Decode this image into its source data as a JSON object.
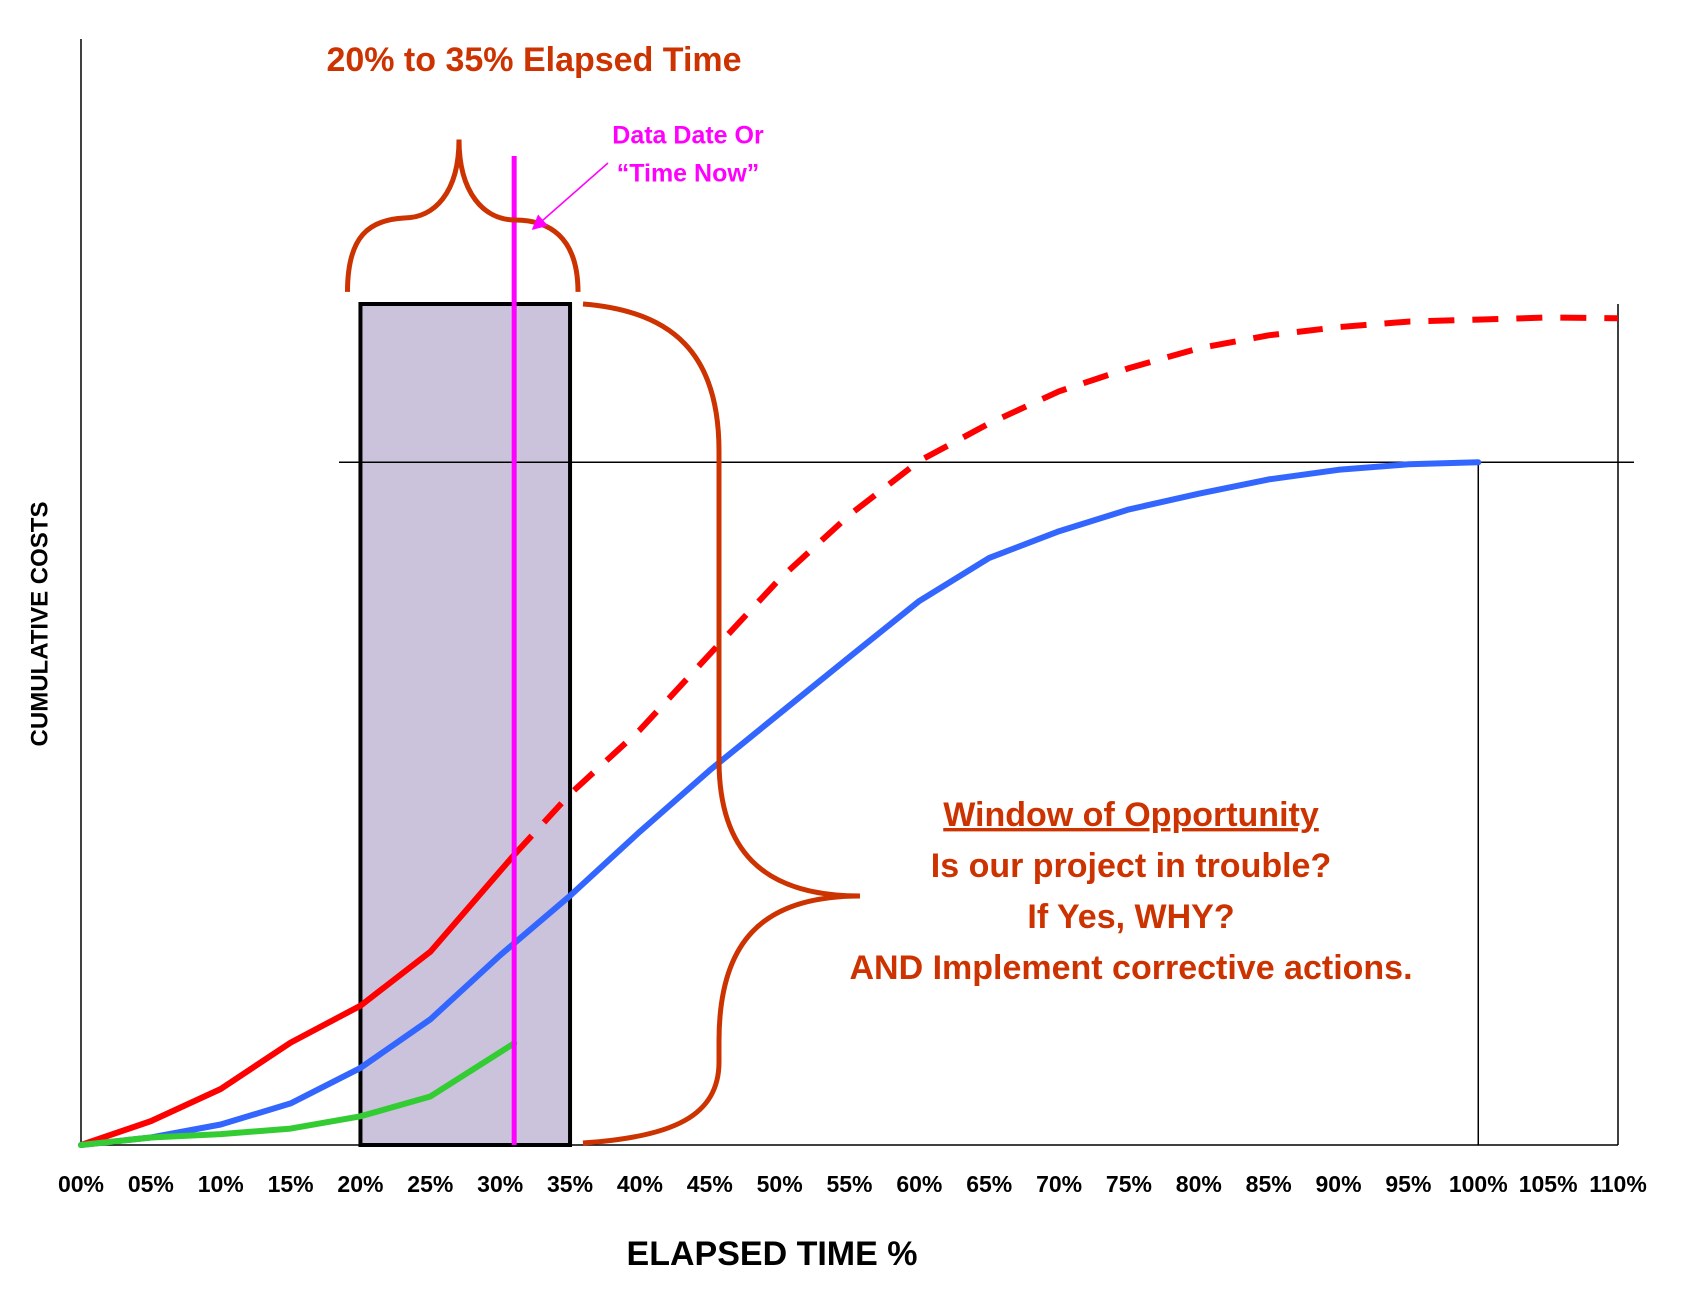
{
  "chart_data": {
    "type": "line",
    "title": "20% to 35% Elapsed Time",
    "x_label": "ELAPSED TIME  %",
    "y_label": "CUMULATIVE COSTS",
    "xlim": [
      0,
      110
    ],
    "ylim": [
      0,
      162
    ],
    "xticks": [
      {
        "value": 0,
        "label": "00%"
      },
      {
        "value": 5,
        "label": "05%"
      },
      {
        "value": 10,
        "label": "10%"
      },
      {
        "value": 15,
        "label": "15%"
      },
      {
        "value": 20,
        "label": "20%"
      },
      {
        "value": 25,
        "label": "25%"
      },
      {
        "value": 30,
        "label": "30%"
      },
      {
        "value": 35,
        "label": "35%"
      },
      {
        "value": 40,
        "label": "40%"
      },
      {
        "value": 45,
        "label": "45%"
      },
      {
        "value": 50,
        "label": "50%"
      },
      {
        "value": 55,
        "label": "55%"
      },
      {
        "value": 60,
        "label": "60%"
      },
      {
        "value": 65,
        "label": "65%"
      },
      {
        "value": 70,
        "label": "70%"
      },
      {
        "value": 75,
        "label": "75%"
      },
      {
        "value": 80,
        "label": "80%"
      },
      {
        "value": 85,
        "label": "85%"
      },
      {
        "value": 90,
        "label": "90%"
      },
      {
        "value": 95,
        "label": "95%"
      },
      {
        "value": 100,
        "label": "100%"
      },
      {
        "value": 105,
        "label": "105%"
      },
      {
        "value": 110,
        "label": "110%"
      }
    ],
    "highlight_range": [
      20,
      35
    ],
    "data_date": 31,
    "data_date_label": [
      "Data Date Or",
      "“Time Now”"
    ],
    "reference_y": 100,
    "reference_x": [
      100,
      110
    ],
    "series": [
      {
        "color": "#ff0000",
        "dash": false,
        "x": [
          0,
          5,
          10,
          15,
          20,
          25,
          31
        ],
        "values": [
          0,
          3.5,
          8.2,
          15,
          20.4,
          28.3,
          42.5
        ]
      },
      {
        "color": "#ff0000",
        "dash": true,
        "x": [
          31,
          35,
          40,
          45,
          50,
          55,
          60,
          65,
          70,
          75,
          80,
          85,
          90,
          95,
          100,
          105,
          110
        ],
        "values": [
          42.5,
          51.4,
          60.8,
          71.9,
          82.9,
          92.3,
          100.2,
          105.7,
          110.4,
          113.8,
          116.7,
          118.6,
          119.8,
          120.6,
          120.9,
          121.2,
          121.1
        ]
      },
      {
        "color": "#3366ff",
        "dash": false,
        "x": [
          0,
          5,
          10,
          15,
          20,
          25,
          30,
          35,
          40,
          45,
          50,
          55,
          60,
          65,
          70,
          75,
          80,
          85,
          90,
          95,
          100
        ],
        "values": [
          0,
          1.1,
          3,
          6.1,
          11.3,
          18.4,
          27.8,
          36.5,
          45.9,
          54.9,
          63.2,
          71.5,
          79.7,
          86,
          89.9,
          93.1,
          95.4,
          97.5,
          98.9,
          99.7,
          100
        ]
      },
      {
        "color": "#33cc33",
        "dash": false,
        "x": [
          0,
          5,
          10,
          15,
          20,
          25,
          31
        ],
        "values": [
          0,
          1.1,
          1.6,
          2.4,
          4.2,
          7.1,
          14.9
        ]
      }
    ],
    "annotations": [
      "Window of Opportunity",
      "Is our project in trouble?",
      "If Yes, WHY?",
      "AND Implement corrective actions."
    ]
  }
}
